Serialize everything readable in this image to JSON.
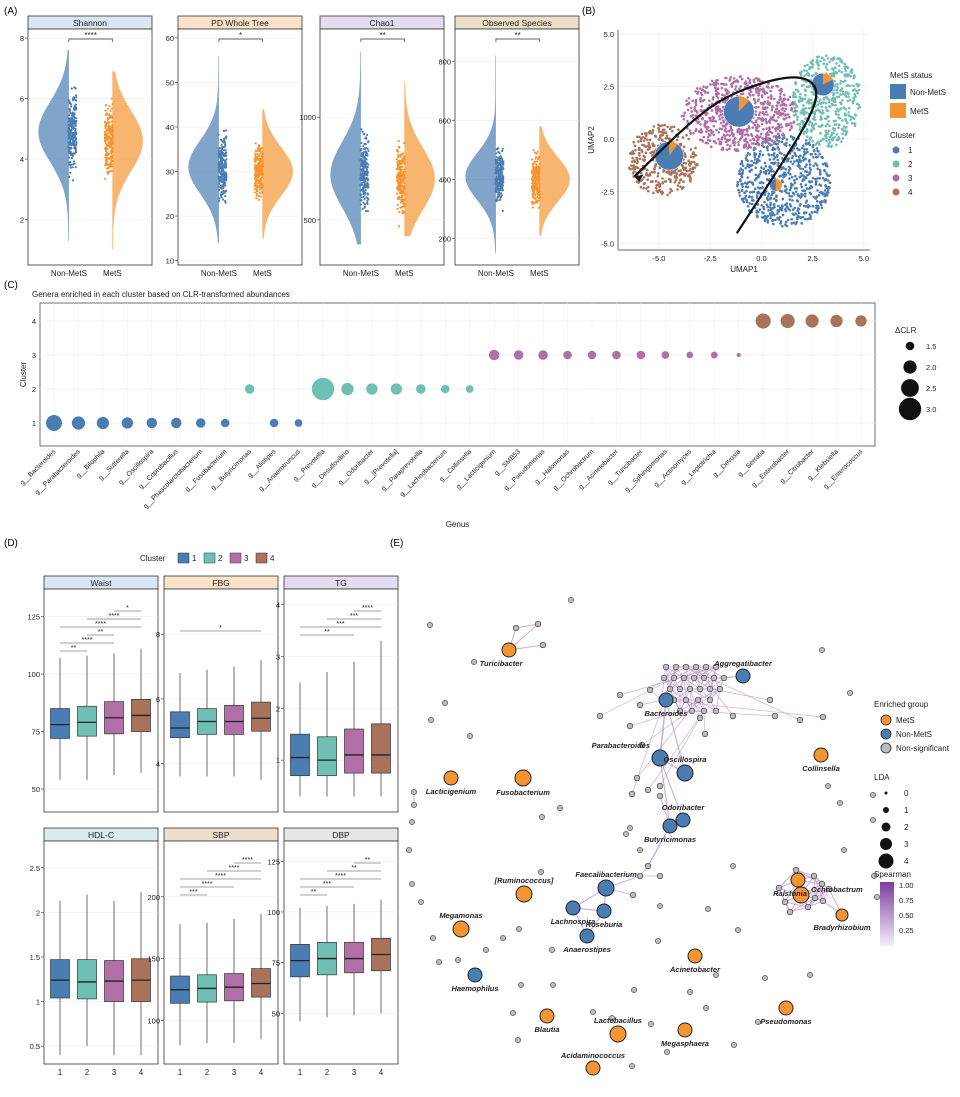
{
  "figure_labels": {
    "a": "(A)",
    "b": "(B)",
    "c": "(C)",
    "d": "(D)",
    "e": "(E)"
  },
  "colors": {
    "nonmets": "#4a7db3",
    "mets": "#f59532",
    "c1": "#4a7db3",
    "c2": "#6fbfb4",
    "c3": "#b06fa6",
    "c4": "#a8735a",
    "gray": "#bdbdbd",
    "strip": "#e6e6e6",
    "edge": "#b98ccb"
  },
  "chart_data": [
    {
      "id": "A",
      "type": "violin",
      "categories": [
        "Non-MetS",
        "MetS"
      ],
      "panels": [
        {
          "title": "Shannon",
          "strip_color": "#dbe6f5",
          "ylim": [
            0.5,
            8.3
          ],
          "yticks": [
            2,
            4,
            6,
            8
          ],
          "sig": "****",
          "groups": [
            {
              "name": "Non-MetS",
              "center": 4.9,
              "spread": 1.0,
              "min": 1.3,
              "max": 7.6
            },
            {
              "name": "MetS",
              "center": 4.6,
              "spread": 1.0,
              "min": 1.0,
              "max": 6.9
            }
          ]
        },
        {
          "title": "PD Whole Tree",
          "strip_color": "#fbe2cb",
          "ylim": [
            9,
            62
          ],
          "yticks": [
            10,
            20,
            30,
            40,
            50,
            60
          ],
          "sig": "*",
          "groups": [
            {
              "name": "Non-MetS",
              "center": 31,
              "spread": 6,
              "min": 14,
              "max": 56
            },
            {
              "name": "MetS",
              "center": 30,
              "spread": 5.5,
              "min": 15,
              "max": 44
            }
          ]
        },
        {
          "title": "Chao1",
          "strip_color": "#e5dcef",
          "ylim": [
            280,
            1430
          ],
          "yticks": [
            500,
            1000
          ],
          "sig": "**",
          "groups": [
            {
              "name": "Non-MetS",
              "center": 720,
              "spread": 160,
              "min": 380,
              "max": 1320
            },
            {
              "name": "MetS",
              "center": 700,
              "spread": 150,
              "min": 420,
              "max": 1170
            }
          ]
        },
        {
          "title": "Observed Species",
          "strip_color": "#eedfcc",
          "ylim": [
            110,
            910
          ],
          "yticks": [
            200,
            400,
            600,
            800
          ],
          "sig": "**",
          "groups": [
            {
              "name": "Non-MetS",
              "center": 410,
              "spread": 80,
              "min": 150,
              "max": 820
            },
            {
              "name": "MetS",
              "center": 400,
              "spread": 75,
              "min": 210,
              "max": 580
            }
          ]
        }
      ]
    },
    {
      "id": "B",
      "type": "scatter",
      "xlabel": "UMAP1",
      "ylabel": "UMAP2",
      "xlim": [
        -7,
        5.3
      ],
      "ylim": [
        -5.3,
        5.2
      ],
      "xticks": [
        -5.0,
        -2.5,
        0.0,
        2.5,
        5.0
      ],
      "yticks": [
        -5.0,
        -2.5,
        0.0,
        2.5,
        5.0
      ],
      "legend_status_title": "MetS status",
      "legend_status": [
        "Non-MetS",
        "MetS"
      ],
      "legend_cluster_title": "Cluster",
      "legend_cluster": [
        "1",
        "2",
        "3",
        "4"
      ],
      "clusters": [
        {
          "name": "1",
          "cx": 1.1,
          "cy": -2.0,
          "rx": 2.3,
          "ry": 2.2,
          "n": 650
        },
        {
          "name": "2",
          "cx": 3.2,
          "cy": 1.8,
          "rx": 1.7,
          "ry": 2.2,
          "n": 520
        },
        {
          "name": "3",
          "cx": -1.1,
          "cy": 1.2,
          "rx": 2.8,
          "ry": 1.8,
          "n": 700
        },
        {
          "name": "4",
          "cx": -4.8,
          "cy": -1.0,
          "rx": 1.7,
          "ry": 1.7,
          "n": 380
        }
      ],
      "pies": [
        {
          "cluster": "1",
          "x": 0.7,
          "y": -2.2,
          "r": 0.3,
          "mets_frac": 0.5
        },
        {
          "cluster": "2",
          "x": 3.0,
          "y": 2.6,
          "r": 0.55,
          "mets_frac": 0.18
        },
        {
          "cluster": "3",
          "x": -1.1,
          "y": 1.3,
          "r": 0.75,
          "mets_frac": 0.12
        },
        {
          "cluster": "4",
          "x": -4.5,
          "y": -0.8,
          "r": 0.7,
          "mets_frac": 0.1
        }
      ],
      "trajectory": [
        [
          -1.2,
          -4.5
        ],
        [
          0.8,
          -1.5
        ],
        [
          2.5,
          1.2
        ],
        [
          2.8,
          2.6
        ],
        [
          1.5,
          3.1
        ],
        [
          -1.5,
          2.2
        ],
        [
          -3.5,
          0.8
        ],
        [
          -6.2,
          -1.8
        ]
      ]
    },
    {
      "id": "C",
      "type": "dot",
      "title": "Genera enriched in each cluster based on CLR-transformed abundances",
      "xlabel": "Genus",
      "ylabel": "Cluster",
      "yticks": [
        1,
        2,
        3,
        4
      ],
      "size_legend_title": "ΔCLR",
      "size_legend": [
        1.5,
        2.0,
        2.5,
        3.0
      ],
      "points": [
        {
          "genus": "g__Bacteroides",
          "cluster": 1,
          "dclr": 2.3
        },
        {
          "genus": "g__Parabacteroides",
          "cluster": 1,
          "dclr": 2.0
        },
        {
          "genus": "g__Bilophila",
          "cluster": 1,
          "dclr": 1.9
        },
        {
          "genus": "g__Sutterella",
          "cluster": 1,
          "dclr": 1.8
        },
        {
          "genus": "g__Oscillospira",
          "cluster": 1,
          "dclr": 1.7
        },
        {
          "genus": "g__Coprobacillus",
          "cluster": 1,
          "dclr": 1.7
        },
        {
          "genus": "g__Phascolarctobacterium",
          "cluster": 1,
          "dclr": 1.6
        },
        {
          "genus": "g__Fusobacterium",
          "cluster": 1,
          "dclr": 1.5
        },
        {
          "genus": "g__Butyricimonas",
          "cluster": 2,
          "dclr": 1.6
        },
        {
          "genus": "g__Alistipes",
          "cluster": 1,
          "dclr": 1.5
        },
        {
          "genus": "g__Anaerotruncus",
          "cluster": 1,
          "dclr": 1.4
        },
        {
          "genus": "g__Prevotella",
          "cluster": 2,
          "dclr": 3.0
        },
        {
          "genus": "g__Desulfovibrio",
          "cluster": 2,
          "dclr": 1.9
        },
        {
          "genus": "g__Odoribacter",
          "cluster": 2,
          "dclr": 1.8
        },
        {
          "genus": "g__[Prevotella]",
          "cluster": 2,
          "dclr": 1.8
        },
        {
          "genus": "g__Paraprevotella",
          "cluster": 2,
          "dclr": 1.6
        },
        {
          "genus": "g__Lachnobacterium",
          "cluster": 2,
          "dclr": 1.5
        },
        {
          "genus": "g__Collinsella",
          "cluster": 2,
          "dclr": 1.4
        },
        {
          "genus": "g__Lacticigenium",
          "cluster": 3,
          "dclr": 1.7
        },
        {
          "genus": "g__SMB53",
          "cluster": 3,
          "dclr": 1.6
        },
        {
          "genus": "g__Pseudomonas",
          "cluster": 3,
          "dclr": 1.6
        },
        {
          "genus": "g__Halomonas",
          "cluster": 3,
          "dclr": 1.5
        },
        {
          "genus": "g__Ochrobactrum",
          "cluster": 3,
          "dclr": 1.5
        },
        {
          "genus": "g__Acinetobacter",
          "cluster": 3,
          "dclr": 1.5
        },
        {
          "genus": "g__Turicibacter",
          "cluster": 3,
          "dclr": 1.5
        },
        {
          "genus": "g__Sphingomonas",
          "cluster": 3,
          "dclr": 1.4
        },
        {
          "genus": "g__Actinomyces",
          "cluster": 3,
          "dclr": 1.3
        },
        {
          "genus": "g__Leptotrichia",
          "cluster": 3,
          "dclr": 1.3
        },
        {
          "genus": "g__Devosia",
          "cluster": 3,
          "dclr": 1.0
        },
        {
          "genus": "g__Serratia",
          "cluster": 4,
          "dclr": 2.2
        },
        {
          "genus": "g__Enterobacter",
          "cluster": 4,
          "dclr": 2.1
        },
        {
          "genus": "g__Citrobacter",
          "cluster": 4,
          "dclr": 2.0
        },
        {
          "genus": "g__Klebsiella",
          "cluster": 4,
          "dclr": 1.9
        },
        {
          "genus": "g__Enterococcus",
          "cluster": 4,
          "dclr": 1.8
        }
      ]
    },
    {
      "id": "D",
      "type": "box",
      "legend_title": "Cluster",
      "categories": [
        "1",
        "2",
        "3",
        "4"
      ],
      "panels": [
        {
          "title": "Waist",
          "strip_color": "#dbe6f5",
          "ylim": [
            40,
            137
          ],
          "yticks": [
            50,
            75,
            100,
            125
          ],
          "boxes": [
            [
              54,
              72,
              78,
              85,
              107
            ],
            [
              54,
              73,
              79,
              86,
              108
            ],
            [
              56,
              74,
              81,
              88,
              109
            ],
            [
              57,
              75,
              82,
              89,
              111
            ]
          ],
          "sig": [
            {
              "a": 1,
              "b": 2,
              "label": "**"
            },
            {
              "a": 1,
              "b": 3,
              "label": "****"
            },
            {
              "a": 2,
              "b": 3,
              "label": "**"
            },
            {
              "a": 1,
              "b": 4,
              "label": "****"
            },
            {
              "a": 2,
              "b": 4,
              "label": "****"
            },
            {
              "a": 3,
              "b": 4,
              "label": "*"
            }
          ]
        },
        {
          "title": "FBG",
          "strip_color": "#fbe2cb",
          "ylim": [
            2.5,
            9.4
          ],
          "yticks": [
            4,
            6,
            8
          ],
          "boxes": [
            [
              3.6,
              4.8,
              5.1,
              5.6,
              6.8
            ],
            [
              3.6,
              4.9,
              5.3,
              5.7,
              6.9
            ],
            [
              3.6,
              4.9,
              5.3,
              5.8,
              7.0
            ],
            [
              3.5,
              5.0,
              5.4,
              5.9,
              7.2
            ]
          ],
          "sig": [
            {
              "a": 1,
              "b": 4,
              "label": "*"
            }
          ]
        },
        {
          "title": "TG",
          "strip_color": "#e5dcef",
          "ylim": [
            0,
            4.3
          ],
          "yticks": [
            1,
            2,
            3,
            4
          ],
          "boxes": [
            [
              0.3,
              0.7,
              1.05,
              1.5,
              2.5
            ],
            [
              0.3,
              0.7,
              1.0,
              1.45,
              2.7
            ],
            [
              0.3,
              0.75,
              1.1,
              1.6,
              2.9
            ],
            [
              0.3,
              0.75,
              1.1,
              1.7,
              3.3
            ]
          ],
          "sig": [
            {
              "a": 1,
              "b": 3,
              "label": "**"
            },
            {
              "a": 1,
              "b": 4,
              "label": "***"
            },
            {
              "a": 2,
              "b": 4,
              "label": "***"
            },
            {
              "a": 3,
              "b": 4,
              "label": "****"
            }
          ]
        },
        {
          "title": "HDL-C",
          "strip_color": "#d8ecec",
          "ylim": [
            0.3,
            2.8
          ],
          "yticks": [
            0.5,
            1.0,
            1.5,
            2.0,
            2.5
          ],
          "boxes": [
            [
              0.4,
              1.04,
              1.24,
              1.47,
              2.13
            ],
            [
              0.5,
              1.03,
              1.22,
              1.47,
              2.2
            ],
            [
              0.4,
              1.0,
              1.23,
              1.46,
              2.13
            ],
            [
              0.4,
              1.0,
              1.24,
              1.48,
              2.23
            ]
          ],
          "sig": []
        },
        {
          "title": "SBP",
          "strip_color": "#eedfcc",
          "ylim": [
            65,
            245
          ],
          "yticks": [
            100,
            150,
            200
          ],
          "boxes": [
            [
              80,
              114,
              125,
              136,
              178
            ],
            [
              82,
              115,
              126,
              137,
              179
            ],
            [
              82,
              116,
              127,
              138,
              182
            ],
            [
              85,
              119,
              130,
              142,
              186
            ]
          ],
          "sig": [
            {
              "a": 1,
              "b": 2,
              "label": "***"
            },
            {
              "a": 1,
              "b": 3,
              "label": "****"
            },
            {
              "a": 1,
              "b": 4,
              "label": "****"
            },
            {
              "a": 2,
              "b": 4,
              "label": "****"
            },
            {
              "a": 3,
              "b": 4,
              "label": "****"
            }
          ]
        },
        {
          "title": "DBP",
          "strip_color": "#e6e6e6",
          "ylim": [
            25,
            135
          ],
          "yticks": [
            50,
            75,
            100,
            125
          ],
          "boxes": [
            [
              46,
              68,
              76,
              84,
              102
            ],
            [
              48,
              69,
              77,
              85,
              103
            ],
            [
              49,
              70,
              77,
              85,
              104
            ],
            [
              50,
              71,
              79,
              87,
              106
            ]
          ],
          "sig": [
            {
              "a": 1,
              "b": 2,
              "label": "**"
            },
            {
              "a": 1,
              "b": 3,
              "label": "***"
            },
            {
              "a": 1,
              "b": 4,
              "label": "****"
            },
            {
              "a": 2,
              "b": 4,
              "label": "**"
            },
            {
              "a": 3,
              "b": 4,
              "label": "**"
            }
          ]
        }
      ]
    },
    {
      "id": "E",
      "type": "network",
      "legend_group_title": "Enriched group",
      "legend_group": [
        "MetS",
        "Non-MetS",
        "Non-significant"
      ],
      "legend_lda_title": "LDA",
      "legend_lda": [
        0,
        1,
        2,
        3,
        4
      ],
      "legend_spearman_title": "Spearman",
      "legend_spearman_ticks": [
        "1.00",
        "0.75",
        "0.50",
        "0.25"
      ],
      "labeled_nodes": [
        {
          "label": "Turicibacter",
          "group": "MetS"
        },
        {
          "label": "Aggregatibacter",
          "group": "Non-MetS"
        },
        {
          "label": "Bacteroides",
          "group": "Non-MetS"
        },
        {
          "label": "Parabacteroides",
          "group": "Non-MetS"
        },
        {
          "label": "Oscillospira",
          "group": "Non-MetS"
        },
        {
          "label": "Odoribacter",
          "group": "Non-MetS"
        },
        {
          "label": "Butyricimonas",
          "group": "Non-MetS"
        },
        {
          "label": "Collinsella",
          "group": "MetS"
        },
        {
          "label": "Lacticigenium",
          "group": "MetS"
        },
        {
          "label": "Fusobacterium",
          "group": "MetS"
        },
        {
          "label": "Faecalibacterium",
          "group": "Non-MetS"
        },
        {
          "label": "[Ruminococcus]",
          "group": "MetS"
        },
        {
          "label": "Lachnospira",
          "group": "Non-MetS"
        },
        {
          "label": "Roseburia",
          "group": "Non-MetS"
        },
        {
          "label": "Anaerostipes",
          "group": "Non-MetS"
        },
        {
          "label": "Megamonas",
          "group": "MetS"
        },
        {
          "label": "Haemophilus",
          "group": "Non-MetS"
        },
        {
          "label": "Ralstonia",
          "group": "MetS"
        },
        {
          "label": "Ochrobactrum",
          "group": "MetS"
        },
        {
          "label": "Bradyrhizobium",
          "group": "MetS"
        },
        {
          "label": "Acinetobacter",
          "group": "MetS"
        },
        {
          "label": "Blautia",
          "group": "MetS"
        },
        {
          "label": "Lactobacillus",
          "group": "MetS"
        },
        {
          "label": "Megasphaera",
          "group": "MetS"
        },
        {
          "label": "Pseudomonas",
          "group": "MetS"
        },
        {
          "label": "Acidaminococcus",
          "group": "MetS"
        }
      ]
    }
  ]
}
